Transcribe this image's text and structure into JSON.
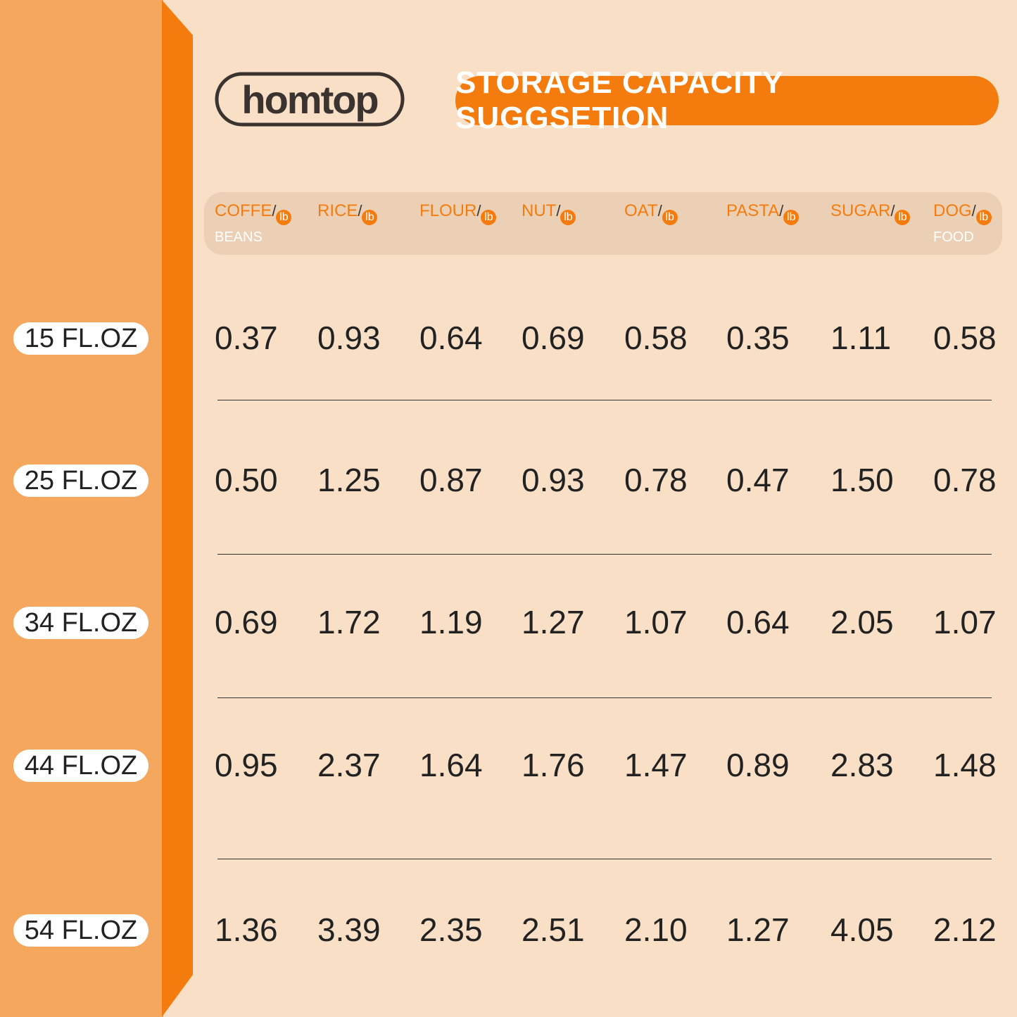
{
  "header": {
    "logo": "homtop",
    "title": "STORAGE CAPACITY SUGGSETION"
  },
  "table": {
    "separator": "/",
    "unit": "lb",
    "columns": [
      {
        "name": "COFFE",
        "sub": "BEANS"
      },
      {
        "name": "RICE"
      },
      {
        "name": "FLOUR"
      },
      {
        "name": "NUT"
      },
      {
        "name": "OAT"
      },
      {
        "name": "PASTA"
      },
      {
        "name": "SUGAR"
      },
      {
        "name": "DOG",
        "sub": "FOOD"
      }
    ],
    "rows": [
      {
        "label": "15 FL.OZ",
        "values": [
          "0.37",
          "0.93",
          "0.64",
          "0.69",
          "0.58",
          "0.35",
          "1.11",
          "0.58"
        ]
      },
      {
        "label": "25 FL.OZ",
        "values": [
          "0.50",
          "1.25",
          "0.87",
          "0.93",
          "0.78",
          "0.47",
          "1.50",
          "0.78"
        ]
      },
      {
        "label": "34 FL.OZ",
        "values": [
          "0.69",
          "1.72",
          "1.19",
          "1.27",
          "1.07",
          "0.64",
          "2.05",
          "1.07"
        ]
      },
      {
        "label": "44 FL.OZ",
        "values": [
          "0.95",
          "2.37",
          "1.64",
          "1.76",
          "1.47",
          "0.89",
          "2.83",
          "1.48"
        ]
      },
      {
        "label": "54 FL.OZ",
        "values": [
          "1.36",
          "3.39",
          "2.35",
          "2.51",
          "2.10",
          "1.27",
          "4.05",
          "2.12"
        ]
      }
    ]
  }
}
